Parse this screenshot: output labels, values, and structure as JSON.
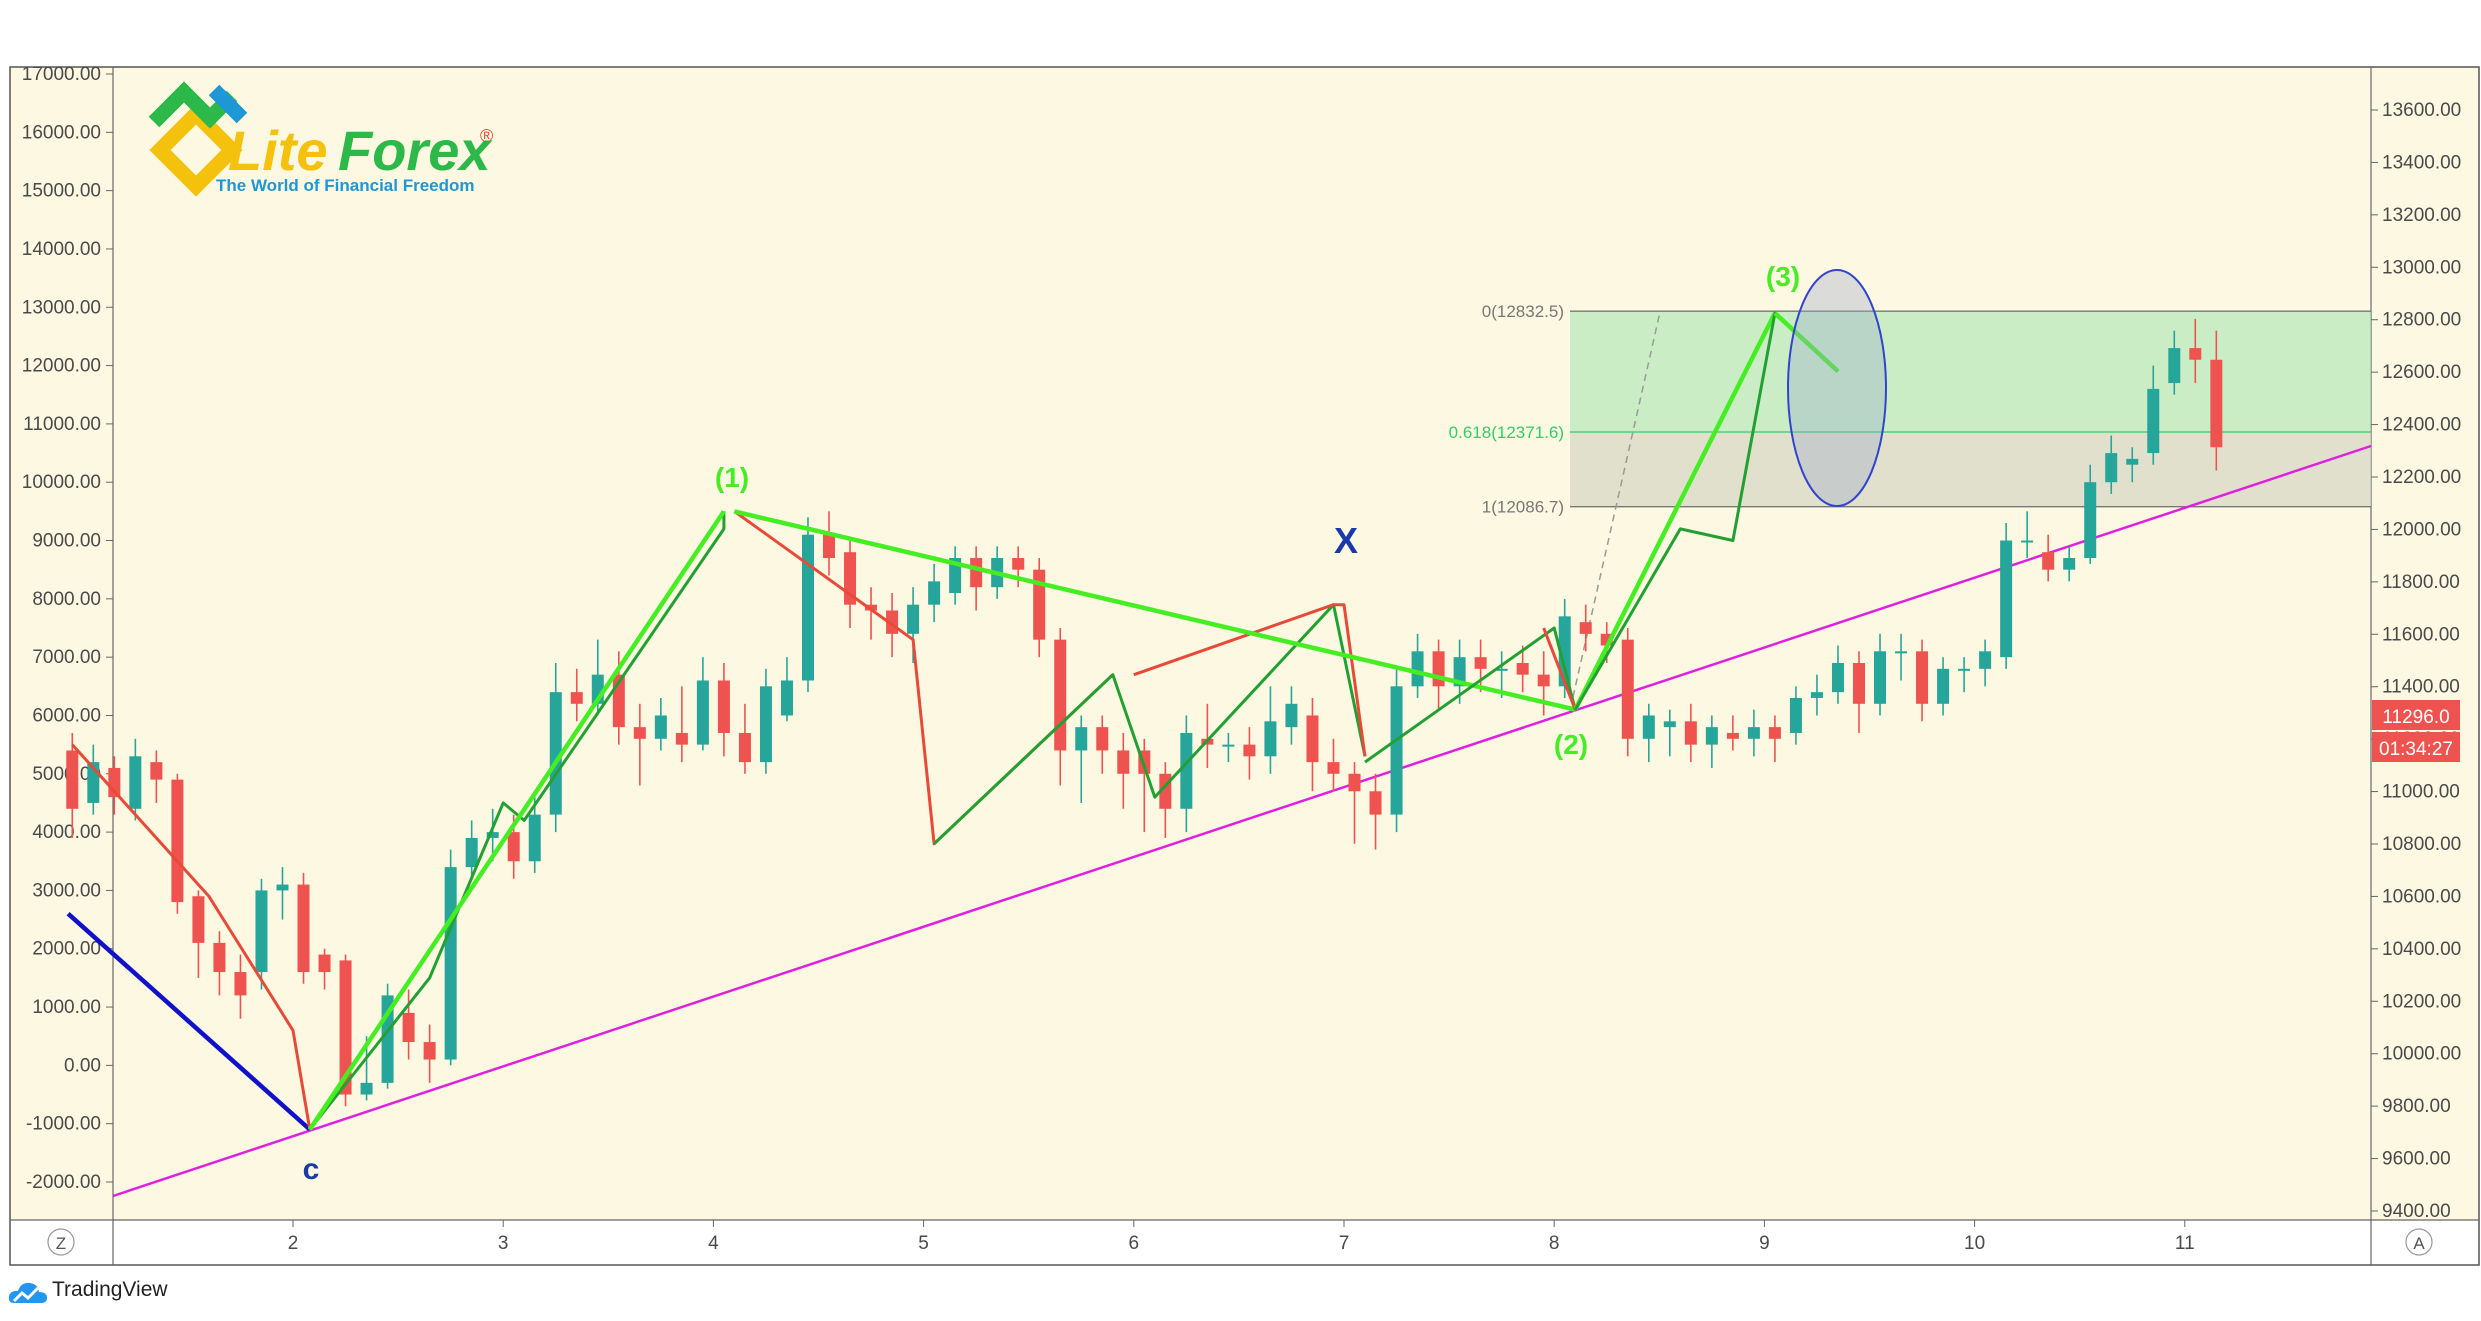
{
  "chart_data": {
    "type": "candlestick",
    "title": "",
    "x_ticks": [
      "2",
      "3",
      "4",
      "5",
      "6",
      "7",
      "8",
      "9",
      "10",
      "11"
    ],
    "left_axis": {
      "ticks": [
        "17000.00",
        "16000.00",
        "15000.00",
        "14000.00",
        "13000.00",
        "12000.00",
        "11000.00",
        "10000.00",
        "9000.00",
        "8000.00",
        "7000.00",
        "6000.00",
        "5000.00",
        "4000.00",
        "3000.00",
        "2000.00",
        "1000.00",
        "0.00",
        "-1000.00",
        "-2000.00"
      ],
      "range": [
        -2300,
        17000
      ]
    },
    "right_axis": {
      "ticks": [
        "13600.00",
        "13400.00",
        "13200.00",
        "13000.00",
        "12800.00",
        "12600.00",
        "12400.00",
        "12200.00",
        "12000.00",
        "11800.00",
        "11600.00",
        "11400.00",
        "11200.00",
        "11000.00",
        "10800.00",
        "10600.00",
        "10400.00",
        "10200.00",
        "10000.00",
        "9800.00",
        "9600.00",
        "9400.00"
      ],
      "range": [
        9360,
        13630
      ]
    },
    "current_price": "11296.0",
    "countdown": "01:34:27",
    "candles": [
      [
        0.95,
        5400,
        4400,
        5700,
        3900
      ],
      [
        1.05,
        4500,
        5200,
        5500,
        4300
      ],
      [
        1.15,
        5100,
        4600,
        5300,
        4300
      ],
      [
        1.25,
        4400,
        5300,
        5600,
        4200
      ],
      [
        1.35,
        5200,
        4900,
        5400,
        4500
      ],
      [
        1.45,
        4900,
        2800,
        5000,
        2600
      ],
      [
        1.55,
        2900,
        2100,
        3000,
        1500
      ],
      [
        1.65,
        2100,
        1600,
        2300,
        1200
      ],
      [
        1.75,
        1600,
        1200,
        1900,
        800
      ],
      [
        1.85,
        1600,
        3000,
        3200,
        1300
      ],
      [
        1.95,
        3000,
        3100,
        3400,
        2500
      ],
      [
        2.05,
        3100,
        1600,
        3300,
        1400
      ],
      [
        2.15,
        1900,
        1600,
        2000,
        1300
      ],
      [
        2.25,
        1800,
        -500,
        1900,
        -700
      ],
      [
        2.35,
        -500,
        -300,
        500,
        -600
      ],
      [
        2.45,
        -300,
        1200,
        1400,
        -400
      ],
      [
        2.55,
        900,
        400,
        1300,
        100
      ],
      [
        2.65,
        400,
        100,
        700,
        -300
      ],
      [
        2.75,
        100,
        3400,
        3700,
        0
      ],
      [
        2.85,
        3400,
        3900,
        4200,
        3200
      ],
      [
        2.95,
        3900,
        4000,
        4400,
        3500
      ],
      [
        3.05,
        4000,
        3500,
        4300,
        3200
      ],
      [
        3.15,
        3500,
        4300,
        4600,
        3300
      ],
      [
        3.25,
        4300,
        6400,
        6900,
        4000
      ],
      [
        3.35,
        6400,
        6200,
        6800,
        5900
      ],
      [
        3.45,
        6200,
        6700,
        7300,
        6000
      ],
      [
        3.55,
        6700,
        5800,
        7100,
        5500
      ],
      [
        3.65,
        5800,
        5600,
        6200,
        4800
      ],
      [
        3.75,
        5600,
        6000,
        6300,
        5400
      ],
      [
        3.85,
        5700,
        5500,
        6500,
        5200
      ],
      [
        3.95,
        5500,
        6600,
        7000,
        5400
      ],
      [
        4.05,
        6600,
        5700,
        6900,
        5300
      ],
      [
        4.15,
        5700,
        5200,
        6200,
        5000
      ],
      [
        4.25,
        5200,
        6500,
        6800,
        5000
      ],
      [
        4.35,
        6000,
        6600,
        7000,
        5900
      ],
      [
        4.45,
        6600,
        9100,
        9400,
        6400
      ],
      [
        4.55,
        9100,
        8700,
        9500,
        8400
      ],
      [
        4.65,
        8800,
        7900,
        9000,
        7500
      ],
      [
        4.75,
        7900,
        7800,
        8200,
        7300
      ],
      [
        4.85,
        7800,
        7400,
        8100,
        7000
      ],
      [
        4.95,
        7400,
        7900,
        8200,
        6900
      ],
      [
        5.05,
        7900,
        8300,
        8600,
        7600
      ],
      [
        5.15,
        8100,
        8700,
        8900,
        7900
      ],
      [
        5.25,
        8700,
        8200,
        8900,
        7800
      ],
      [
        5.35,
        8200,
        8700,
        8900,
        8000
      ],
      [
        5.45,
        8700,
        8500,
        8900,
        8200
      ],
      [
        5.55,
        8500,
        7300,
        8700,
        7000
      ],
      [
        5.65,
        7300,
        5400,
        7500,
        4800
      ],
      [
        5.75,
        5400,
        5800,
        6000,
        4500
      ],
      [
        5.85,
        5800,
        5400,
        6000,
        5000
      ],
      [
        5.95,
        5400,
        5000,
        5700,
        4400
      ],
      [
        6.05,
        5400,
        5000,
        5600,
        4000
      ],
      [
        6.15,
        5000,
        4400,
        5200,
        3900
      ],
      [
        6.25,
        4400,
        5700,
        6000,
        4000
      ],
      [
        6.35,
        5600,
        5500,
        6200,
        5100
      ],
      [
        6.45,
        5500,
        5500,
        5700,
        5200
      ],
      [
        6.55,
        5500,
        5300,
        5800,
        4900
      ],
      [
        6.65,
        5300,
        5900,
        6500,
        5000
      ],
      [
        6.75,
        5800,
        6200,
        6500,
        5500
      ],
      [
        6.85,
        6000,
        5200,
        6300,
        4700
      ],
      [
        6.95,
        5200,
        5000,
        5600,
        4700
      ],
      [
        7.05,
        5000,
        4700,
        5200,
        3800
      ],
      [
        7.15,
        4700,
        4300,
        5000,
        3700
      ],
      [
        7.25,
        4300,
        6500,
        6800,
        4000
      ],
      [
        7.35,
        6500,
        7100,
        7400,
        6300
      ],
      [
        7.45,
        7100,
        6500,
        7300,
        6100
      ],
      [
        7.55,
        6500,
        7000,
        7300,
        6200
      ],
      [
        7.65,
        7000,
        6800,
        7300,
        6400
      ],
      [
        7.75,
        6800,
        6800,
        7100,
        6300
      ],
      [
        7.85,
        6900,
        6700,
        7200,
        6400
      ],
      [
        7.95,
        6700,
        6500,
        7100,
        6000
      ],
      [
        8.05,
        6500,
        7700,
        8000,
        6300
      ],
      [
        8.15,
        7600,
        7400,
        7900,
        7100
      ],
      [
        8.25,
        7400,
        7200,
        7600,
        6900
      ],
      [
        8.35,
        7300,
        5600,
        7500,
        5300
      ],
      [
        8.45,
        5600,
        6000,
        6200,
        5200
      ],
      [
        8.55,
        5800,
        5900,
        6100,
        5300
      ],
      [
        8.65,
        5900,
        5500,
        6200,
        5200
      ],
      [
        8.75,
        5500,
        5800,
        6000,
        5100
      ],
      [
        8.85,
        5700,
        5600,
        6000,
        5400
      ],
      [
        8.95,
        5600,
        5800,
        6100,
        5300
      ],
      [
        9.05,
        5800,
        5600,
        6000,
        5200
      ],
      [
        9.15,
        5700,
        6300,
        6500,
        5500
      ],
      [
        9.25,
        6300,
        6400,
        6700,
        6000
      ],
      [
        9.35,
        6400,
        6900,
        7200,
        6200
      ],
      [
        9.45,
        6900,
        6200,
        7100,
        5700
      ],
      [
        9.55,
        6200,
        7100,
        7400,
        6000
      ],
      [
        9.65,
        7100,
        7100,
        7400,
        6600
      ],
      [
        9.75,
        7100,
        6200,
        7300,
        5900
      ],
      [
        9.85,
        6200,
        6800,
        7000,
        6000
      ],
      [
        9.95,
        6800,
        6800,
        7000,
        6400
      ],
      [
        10.05,
        6800,
        7100,
        7300,
        6500
      ],
      [
        10.15,
        7000,
        9000,
        9300,
        6800
      ],
      [
        10.25,
        9000,
        9000,
        9500,
        8700
      ],
      [
        10.35,
        8800,
        8500,
        9100,
        8300
      ],
      [
        10.45,
        8500,
        8700,
        8900,
        8300
      ],
      [
        10.55,
        8700,
        10000,
        10300,
        8600
      ],
      [
        10.65,
        10000,
        10500,
        10800,
        9800
      ],
      [
        10.75,
        10300,
        10400,
        10600,
        10000
      ],
      [
        10.85,
        10500,
        11600,
        12000,
        10300
      ],
      [
        10.95,
        11700,
        12300,
        12600,
        11500
      ],
      [
        11.05,
        12300,
        12100,
        12800,
        11700
      ],
      [
        11.15,
        12100,
        10600,
        12600,
        10200
      ]
    ],
    "wave_labels": [
      "(1)",
      "X",
      "(2)",
      "(3)",
      "C"
    ],
    "fib_levels": [
      {
        "label": "0(12832.5)",
        "value": 12832.5
      },
      {
        "label": "0.618(12371.6)",
        "value": 12371.6
      },
      {
        "label": "1(12086.7)",
        "value": 12086.7
      }
    ],
    "colors": {
      "background": "#fdf8e2",
      "up_candle": "#26a69a",
      "down_candle": "#ef5350",
      "bright_wave": "#44ee22",
      "dark_wave": "#22a032",
      "red_wave": "#e84a3a",
      "trend_line": "#e020e0",
      "c_leg": "#1111cc",
      "ellipse": "#3344cc"
    }
  },
  "brand": {
    "name_lite": "Lite",
    "name_forex": "Forex",
    "registered": "®",
    "tagline": "The World of Financial Freedom"
  },
  "footer": {
    "tradingview_label": "TradingView",
    "left_corner_button": "Z",
    "right_corner_button": "A"
  }
}
